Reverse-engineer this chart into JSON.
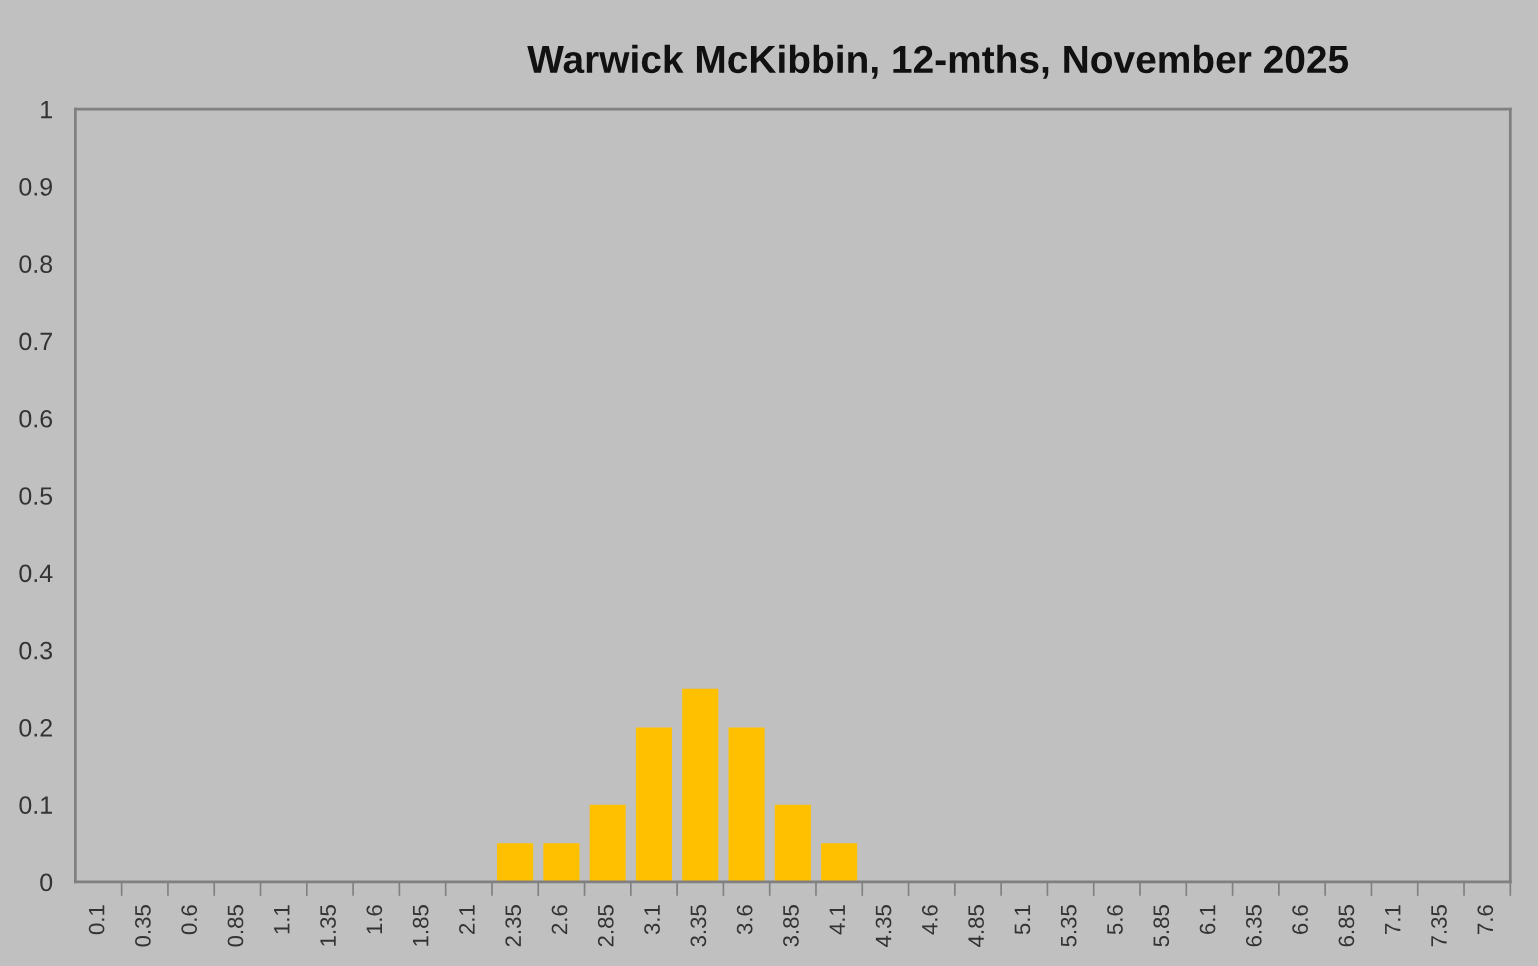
{
  "chart_data": {
    "type": "bar",
    "title": "Warwick McKibbin, 12-mths, November 2025",
    "categories": [
      "0.1",
      "0.35",
      "0.6",
      "0.85",
      "1.1",
      "1.35",
      "1.6",
      "1.85",
      "2.1",
      "2.35",
      "2.6",
      "2.85",
      "3.1",
      "3.35",
      "3.6",
      "3.85",
      "4.1",
      "4.35",
      "4.6",
      "4.85",
      "5.1",
      "5.35",
      "5.6",
      "5.85",
      "6.1",
      "6.35",
      "6.6",
      "6.85",
      "7.1",
      "7.35",
      "7.6"
    ],
    "values": [
      0,
      0,
      0,
      0,
      0,
      0,
      0,
      0,
      0,
      0.05,
      0.05,
      0.1,
      0.2,
      0.25,
      0.2,
      0.1,
      0.05,
      0,
      0,
      0,
      0,
      0,
      0,
      0,
      0,
      0,
      0,
      0,
      0,
      0,
      0
    ],
    "color": "#ffc000",
    "ylim": [
      0,
      1
    ],
    "yticks": [
      0,
      0.1,
      0.2,
      0.3,
      0.4,
      0.5,
      0.6,
      0.7,
      0.8,
      0.9,
      1
    ],
    "grid": false,
    "legend": false
  }
}
